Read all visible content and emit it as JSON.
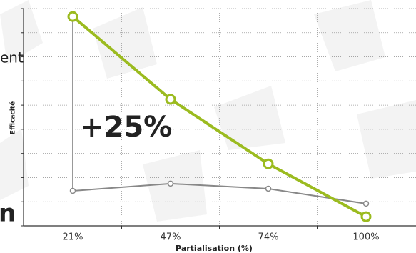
{
  "chart_data": {
    "type": "line",
    "y_label": "Efficacité",
    "x_label": "Partialisation (%)",
    "annotation": "+25%",
    "background_text": [
      "ent",
      "n"
    ],
    "categories": [
      "21%",
      "47%",
      "74%",
      "100%"
    ],
    "series": [
      {
        "color": "#9bbb1f",
        "values": [
          8.67,
          5.24,
          2.57,
          0.38
        ]
      },
      {
        "color": "#888888",
        "values": [
          1.45,
          1.75,
          1.54,
          0.92
        ]
      }
    ],
    "ylim": [
      0,
      9
    ],
    "yticks": [
      0,
      1,
      2,
      3,
      4,
      5,
      6,
      7,
      8,
      9
    ],
    "grid": true
  }
}
